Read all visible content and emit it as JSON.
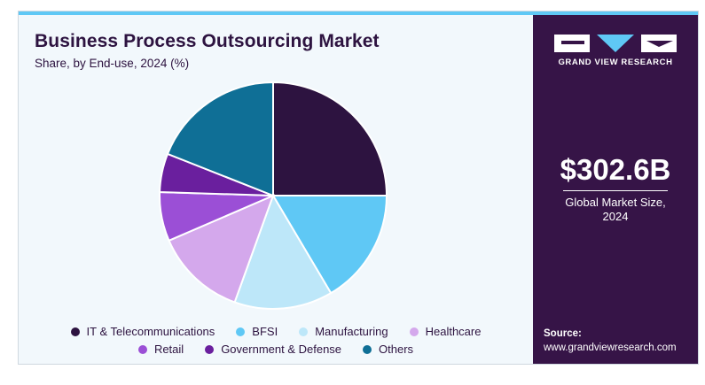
{
  "header": {
    "title": "Business Process Outsourcing Market",
    "subtitle": "Share, by End-use, 2024 (%)"
  },
  "chart_data": {
    "type": "pie",
    "title": "Business Process Outsourcing Market",
    "subtitle": "Share, by End-use, 2024 (%)",
    "start": "12 o'clock",
    "direction": "clockwise",
    "slices": [
      {
        "label": "IT & Telecommunications",
        "value": 25.0,
        "color": "#2d1340"
      },
      {
        "label": "BFSI",
        "value": 16.5,
        "color": "#5fc8f5"
      },
      {
        "label": "Manufacturing",
        "value": 14.0,
        "color": "#bde7f9"
      },
      {
        "label": "Healthcare",
        "value": 13.0,
        "color": "#d4a8ec"
      },
      {
        "label": "Retail",
        "value": 7.0,
        "color": "#9b4fd6"
      },
      {
        "label": "Government & Defense",
        "value": 5.5,
        "color": "#6a1f9e"
      },
      {
        "label": "Others",
        "value": 19.0,
        "color": "#0f6f96"
      }
    ],
    "legend_placement": "bottom"
  },
  "legend_rows": [
    [
      0,
      1,
      2,
      3
    ],
    [
      4,
      5,
      6
    ]
  ],
  "sidebar": {
    "logo_text": "GRAND VIEW RESEARCH",
    "stat_value": "$302.6B",
    "stat_label_line1": "Global Market Size,",
    "stat_label_line2": "2024",
    "source_title": "Source:",
    "source_url": "www.grandviewresearch.com"
  },
  "colors": {
    "panel_bg": "#361447",
    "accent": "#5fc8f5",
    "chart_bg": "#f2f8fc"
  }
}
